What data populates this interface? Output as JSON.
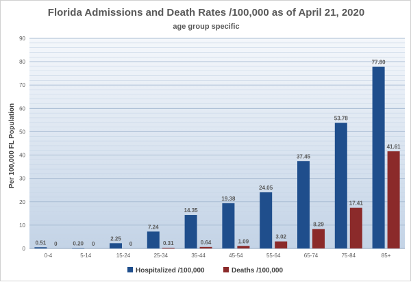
{
  "chart_data": {
    "type": "bar",
    "title": "Florida Admissions  and Death Rates /100,000 as of April 21, 2020",
    "subtitle": "age group specific",
    "xlabel": "",
    "ylabel": "Per 100,000 FL Population",
    "ylim": [
      0,
      90
    ],
    "yticks": [
      0,
      10,
      20,
      30,
      40,
      50,
      60,
      70,
      80,
      90
    ],
    "grid": true,
    "legend_position": "bottom",
    "categories": [
      "0-4",
      "5-14",
      "15-24",
      "25-34",
      "35-44",
      "45-54",
      "55-64",
      "65-74",
      "75-84",
      "85+"
    ],
    "series": [
      {
        "name": "Hospitalized /100,000",
        "color": "#1f4e8c",
        "values": [
          0.51,
          0.2,
          2.25,
          7.24,
          14.35,
          19.38,
          24.05,
          37.45,
          53.78,
          77.8
        ],
        "labels": [
          "0.51",
          "0.20",
          "2.25",
          "7.24",
          "14.35",
          "19.38",
          "24.05",
          "37.45",
          "53.78",
          "77.80"
        ]
      },
      {
        "name": "Deaths /100,000",
        "color": "#8b2a2a",
        "values": [
          0,
          0,
          0,
          0.31,
          0.64,
          1.09,
          3.02,
          8.29,
          17.41,
          41.61
        ],
        "labels": [
          "0",
          "0",
          "0",
          "0.31",
          "0.64",
          "1.09",
          "3.02",
          "8.29",
          "17.41",
          "41.61"
        ]
      }
    ]
  }
}
